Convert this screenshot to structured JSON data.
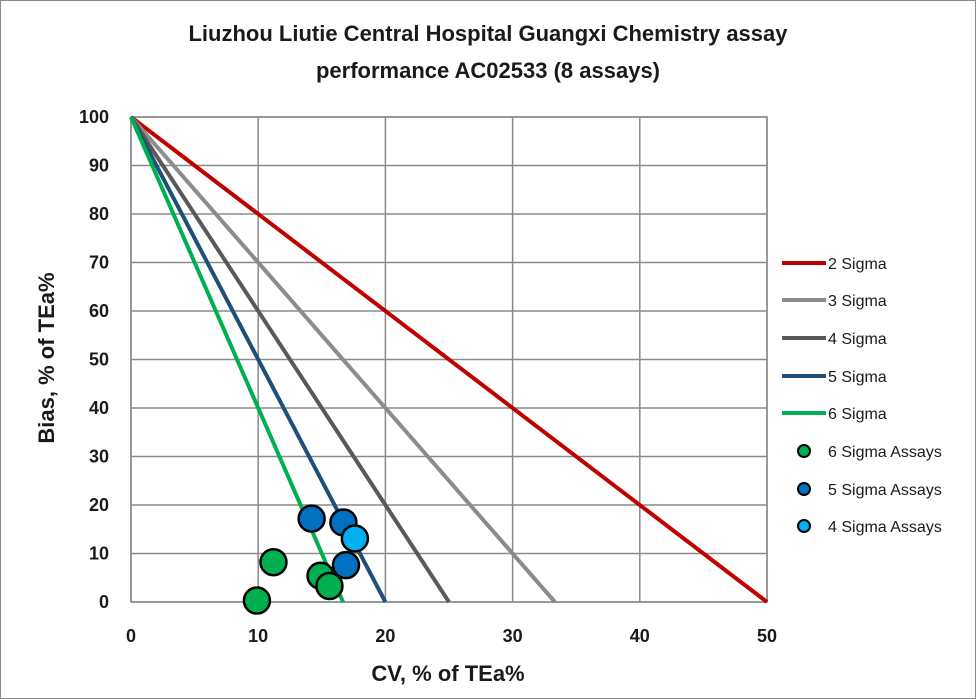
{
  "chart_data": {
    "type": "scatter",
    "title": "Liuzhou Liutie Central Hospital Guangxi Chemistry assay",
    "subtitle": "performance AC02533 (8 assays)",
    "xlabel": "CV, % of TEa%",
    "ylabel": "Bias, % of TEa%",
    "xlim": [
      0,
      50
    ],
    "ylim": [
      0,
      100
    ],
    "xticks": [
      "0",
      "10",
      "20",
      "30",
      "40",
      "50"
    ],
    "yticks": [
      "0",
      "10",
      "20",
      "30",
      "40",
      "50",
      "60",
      "70",
      "80",
      "90",
      "100"
    ],
    "grid": true,
    "legend_position": "right",
    "lines": [
      {
        "name": "2 Sigma",
        "color": "#c00000",
        "points": [
          [
            0,
            100
          ],
          [
            50,
            0
          ]
        ]
      },
      {
        "name": "3 Sigma",
        "color": "#8c8c8c",
        "points": [
          [
            0,
            100
          ],
          [
            33.33,
            0
          ]
        ]
      },
      {
        "name": "4 Sigma",
        "color": "#595959",
        "points": [
          [
            0,
            100
          ],
          [
            25,
            0
          ]
        ]
      },
      {
        "name": "5 Sigma",
        "color": "#1f4e79",
        "points": [
          [
            0,
            100
          ],
          [
            20,
            0
          ]
        ]
      },
      {
        "name": "6 Sigma",
        "color": "#00b050",
        "points": [
          [
            0,
            100
          ],
          [
            16.67,
            0
          ]
        ]
      }
    ],
    "series": [
      {
        "name": "6 Sigma Assays",
        "color": "#00b050",
        "points": [
          [
            9.9,
            0.3
          ],
          [
            11.2,
            8.2
          ],
          [
            14.9,
            5.4
          ],
          [
            15.6,
            3.3
          ]
        ]
      },
      {
        "name": "5 Sigma Assays",
        "color": "#0070c0",
        "points": [
          [
            14.2,
            17.2
          ],
          [
            16.7,
            16.4
          ],
          [
            16.9,
            7.6
          ]
        ]
      },
      {
        "name": "4 Sigma Assays",
        "color": "#00b0f0",
        "points": [
          [
            17.6,
            13.1
          ]
        ]
      }
    ]
  }
}
